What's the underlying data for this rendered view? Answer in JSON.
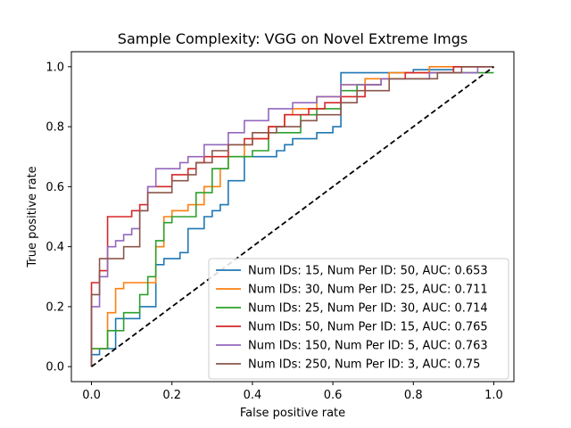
{
  "chart_data": {
    "type": "line",
    "title": "Sample Complexity: VGG on Novel Extreme Imgs",
    "xlabel": "False positive rate",
    "ylabel": "True positive rate",
    "xlim": [
      -0.05,
      1.05
    ],
    "ylim": [
      -0.05,
      1.05
    ],
    "xticks": [
      0.0,
      0.2,
      0.4,
      0.6,
      0.8,
      1.0
    ],
    "yticks": [
      0.0,
      0.2,
      0.4,
      0.6,
      0.8,
      1.0
    ],
    "xtick_labels": [
      "0.0",
      "0.2",
      "0.4",
      "0.6",
      "0.8",
      "1.0"
    ],
    "ytick_labels": [
      "0.0",
      "0.2",
      "0.4",
      "0.6",
      "0.8",
      "1.0"
    ],
    "grid": false,
    "legend_position": "lower-right",
    "diagonal": {
      "x": [
        0,
        1
      ],
      "y": [
        0,
        1
      ],
      "style": "dashed",
      "color": "#000000"
    },
    "series": [
      {
        "name": "Num IDs: 15, Num Per ID: 50, AUC: 0.653",
        "color": "#1f77b4",
        "x": [
          0,
          0,
          0.02,
          0.02,
          0.06,
          0.06,
          0.12,
          0.12,
          0.16,
          0.16,
          0.18,
          0.18,
          0.22,
          0.22,
          0.24,
          0.24,
          0.28,
          0.28,
          0.3,
          0.3,
          0.32,
          0.32,
          0.34,
          0.34,
          0.38,
          0.38,
          0.46,
          0.46,
          0.48,
          0.48,
          0.5,
          0.5,
          0.52,
          0.52,
          0.56,
          0.56,
          0.6,
          0.6,
          0.62,
          0.62,
          0.66,
          0.66,
          0.8,
          0.8,
          0.9,
          0.9,
          0.94,
          0.94,
          1.0
        ],
        "y": [
          0,
          0.04,
          0.04,
          0.06,
          0.06,
          0.16,
          0.16,
          0.2,
          0.2,
          0.34,
          0.34,
          0.36,
          0.36,
          0.38,
          0.38,
          0.46,
          0.46,
          0.5,
          0.5,
          0.52,
          0.52,
          0.54,
          0.54,
          0.62,
          0.62,
          0.7,
          0.7,
          0.72,
          0.72,
          0.74,
          0.74,
          0.76,
          0.76,
          0.76,
          0.76,
          0.78,
          0.78,
          0.8,
          0.8,
          0.98,
          0.98,
          0.98,
          0.98,
          0.99,
          0.99,
          1.0,
          1.0,
          1.0,
          1.0
        ]
      },
      {
        "name": "Num IDs: 30, Num Per ID: 25, AUC: 0.711",
        "color": "#ff7f0e",
        "x": [
          0,
          0,
          0.04,
          0.04,
          0.06,
          0.06,
          0.08,
          0.08,
          0.16,
          0.16,
          0.18,
          0.18,
          0.2,
          0.2,
          0.24,
          0.24,
          0.28,
          0.28,
          0.32,
          0.32,
          0.34,
          0.34,
          0.38,
          0.38,
          0.4,
          0.4,
          0.44,
          0.44,
          0.48,
          0.48,
          0.5,
          0.5,
          0.56,
          0.56,
          0.62,
          0.62,
          0.68,
          0.68,
          0.74,
          0.74,
          0.84,
          0.84,
          1.0
        ],
        "y": [
          0,
          0.06,
          0.06,
          0.18,
          0.18,
          0.26,
          0.26,
          0.28,
          0.28,
          0.4,
          0.4,
          0.5,
          0.5,
          0.52,
          0.52,
          0.54,
          0.54,
          0.6,
          0.6,
          0.66,
          0.66,
          0.7,
          0.7,
          0.74,
          0.74,
          0.76,
          0.76,
          0.8,
          0.8,
          0.84,
          0.84,
          0.86,
          0.86,
          0.9,
          0.9,
          0.94,
          0.94,
          0.96,
          0.96,
          0.98,
          0.98,
          1.0,
          1.0
        ]
      },
      {
        "name": "Num IDs: 25, Num Per ID: 30, AUC: 0.714",
        "color": "#2ca02c",
        "x": [
          0,
          0,
          0.04,
          0.04,
          0.08,
          0.08,
          0.12,
          0.12,
          0.14,
          0.14,
          0.16,
          0.16,
          0.18,
          0.18,
          0.2,
          0.2,
          0.26,
          0.26,
          0.3,
          0.3,
          0.34,
          0.34,
          0.4,
          0.4,
          0.44,
          0.44,
          0.52,
          0.52,
          0.56,
          0.56,
          0.62,
          0.62,
          0.66,
          0.66,
          0.72,
          0.72,
          0.84,
          0.84,
          0.98,
          1.0
        ],
        "y": [
          0,
          0.06,
          0.06,
          0.12,
          0.12,
          0.18,
          0.18,
          0.24,
          0.24,
          0.3,
          0.3,
          0.42,
          0.42,
          0.48,
          0.48,
          0.5,
          0.5,
          0.58,
          0.58,
          0.66,
          0.66,
          0.7,
          0.7,
          0.72,
          0.72,
          0.78,
          0.78,
          0.84,
          0.84,
          0.86,
          0.86,
          0.92,
          0.92,
          0.94,
          0.94,
          0.96,
          0.96,
          0.98,
          0.98,
          0.98
        ]
      },
      {
        "name": "Num IDs: 50, Num Per ID: 15, AUC: 0.765",
        "color": "#d62728",
        "x": [
          0,
          0,
          0.02,
          0.02,
          0.04,
          0.04,
          0.1,
          0.1,
          0.12,
          0.12,
          0.14,
          0.14,
          0.2,
          0.2,
          0.24,
          0.24,
          0.26,
          0.26,
          0.28,
          0.28,
          0.34,
          0.34,
          0.38,
          0.38,
          0.44,
          0.44,
          0.48,
          0.48,
          0.54,
          0.54,
          0.58,
          0.58,
          0.62,
          0.62,
          0.68,
          0.68,
          0.72,
          0.72,
          0.78,
          0.78,
          0.9,
          0.9,
          0.96,
          0.96,
          0.98
        ],
        "y": [
          0,
          0.28,
          0.28,
          0.32,
          0.32,
          0.5,
          0.5,
          0.52,
          0.52,
          0.54,
          0.54,
          0.6,
          0.6,
          0.64,
          0.64,
          0.66,
          0.66,
          0.68,
          0.68,
          0.7,
          0.7,
          0.74,
          0.74,
          0.76,
          0.76,
          0.8,
          0.8,
          0.84,
          0.84,
          0.86,
          0.86,
          0.88,
          0.88,
          0.9,
          0.9,
          0.94,
          0.94,
          0.96,
          0.96,
          0.98,
          0.98,
          1.0,
          1.0,
          1.0,
          1.0
        ]
      },
      {
        "name": "Num IDs: 150, Num Per ID: 5, AUC: 0.763",
        "color": "#9467bd",
        "x": [
          0,
          0,
          0.02,
          0.02,
          0.04,
          0.04,
          0.06,
          0.06,
          0.08,
          0.08,
          0.1,
          0.1,
          0.12,
          0.12,
          0.14,
          0.14,
          0.16,
          0.16,
          0.22,
          0.22,
          0.24,
          0.24,
          0.28,
          0.28,
          0.34,
          0.34,
          0.38,
          0.38,
          0.44,
          0.44,
          0.5,
          0.5,
          0.56,
          0.56,
          0.62,
          0.62,
          0.72,
          0.72,
          0.84,
          0.84,
          0.96,
          0.96,
          1.0
        ],
        "y": [
          0,
          0.2,
          0.2,
          0.3,
          0.3,
          0.4,
          0.4,
          0.42,
          0.42,
          0.44,
          0.44,
          0.46,
          0.46,
          0.52,
          0.52,
          0.6,
          0.6,
          0.66,
          0.66,
          0.68,
          0.68,
          0.7,
          0.7,
          0.74,
          0.74,
          0.78,
          0.78,
          0.82,
          0.82,
          0.86,
          0.86,
          0.88,
          0.88,
          0.9,
          0.9,
          0.94,
          0.94,
          0.96,
          0.96,
          0.98,
          0.98,
          1.0,
          1.0
        ]
      },
      {
        "name": "Num IDs: 250, Num Per ID: 3, AUC: 0.75",
        "color": "#8c564b",
        "x": [
          0,
          0,
          0.02,
          0.02,
          0.08,
          0.08,
          0.12,
          0.12,
          0.14,
          0.14,
          0.2,
          0.2,
          0.24,
          0.24,
          0.26,
          0.26,
          0.3,
          0.3,
          0.34,
          0.34,
          0.4,
          0.4,
          0.46,
          0.46,
          0.52,
          0.52,
          0.56,
          0.56,
          0.62,
          0.62,
          0.66,
          0.66,
          0.74,
          0.74,
          0.86,
          0.86,
          0.92,
          0.92,
          0.98,
          0.98,
          1.0
        ],
        "y": [
          0,
          0.24,
          0.24,
          0.36,
          0.36,
          0.4,
          0.4,
          0.52,
          0.52,
          0.58,
          0.58,
          0.62,
          0.62,
          0.64,
          0.64,
          0.68,
          0.68,
          0.72,
          0.72,
          0.74,
          0.74,
          0.78,
          0.78,
          0.8,
          0.8,
          0.82,
          0.82,
          0.84,
          0.84,
          0.88,
          0.88,
          0.92,
          0.92,
          0.96,
          0.96,
          0.98,
          0.98,
          1.0,
          1.0,
          1.0,
          1.0
        ]
      }
    ]
  }
}
